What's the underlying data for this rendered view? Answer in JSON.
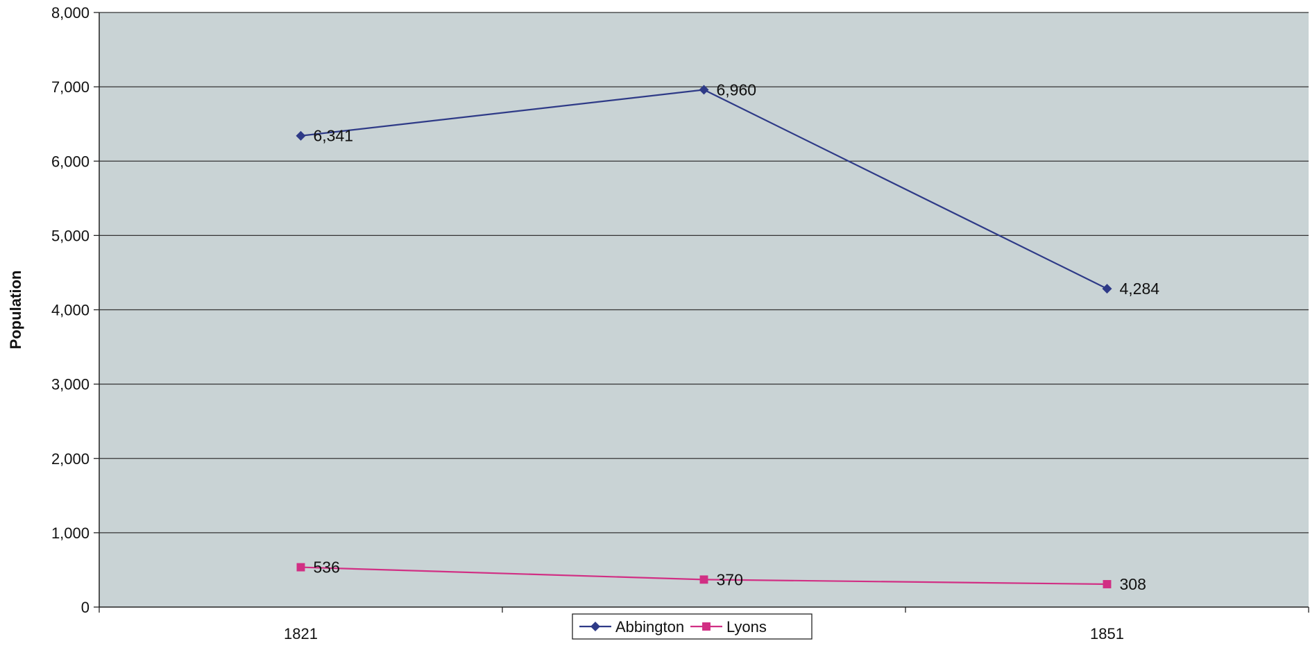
{
  "chart_data": {
    "type": "line",
    "title": "",
    "ylabel": "Population",
    "xlabel": "",
    "categories": [
      "1821",
      "",
      "1851"
    ],
    "ylim": [
      0,
      8000
    ],
    "yticks": [
      "0",
      "1,000",
      "2,000",
      "3,000",
      "4,000",
      "5,000",
      "6,000",
      "7,000",
      "8,000"
    ],
    "grid": true,
    "legend_position": "bottom-center",
    "series": [
      {
        "name": "Abbington",
        "color": "#2e3a87",
        "marker": "diamond",
        "values": [
          6341,
          6960,
          4284
        ],
        "labels": [
          "6,341",
          "6,960",
          "4,284"
        ]
      },
      {
        "name": "Lyons",
        "color": "#d12f84",
        "marker": "square",
        "values": [
          536,
          370,
          308
        ],
        "labels": [
          "536",
          "370",
          "308"
        ]
      }
    ]
  },
  "colors": {
    "plot_background": "#c9d3d5",
    "gridline": "#333333"
  }
}
